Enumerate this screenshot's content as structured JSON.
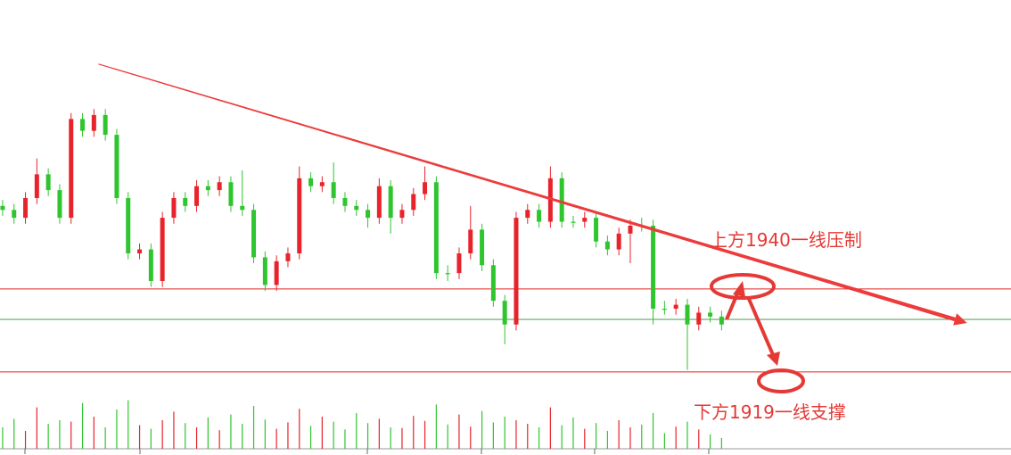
{
  "chart_data": {
    "type": "candlestick",
    "up_color": "#e8232b",
    "down_color": "#2ec52e",
    "ylim": [
      1918.3,
      2013.1
    ],
    "xlim": [
      -0.23,
      88.36
    ],
    "open": [
      1961,
      1960,
      1958,
      1963,
      1969,
      1965,
      1958,
      1983,
      1980,
      1984,
      1979,
      1963,
      1949,
      1950,
      1942,
      1958,
      1963,
      1961,
      1966,
      1965,
      1967,
      1961,
      1960,
      1948,
      1941,
      1947,
      1949,
      1968,
      1966,
      1967,
      1963,
      1961,
      1960,
      1958,
      1966,
      1958,
      1960,
      1964,
      1967,
      1944,
      1944,
      1949,
      1955,
      1946,
      1937,
      1931,
      1958,
      1960,
      1957,
      1968,
      1957,
      1957,
      1958,
      1952,
      1950,
      1954,
      1956,
      1956,
      1935,
      1935,
      1936,
      1931,
      1934,
      1933
    ],
    "high": [
      1962.5,
      1961.5,
      1964.5,
      1973,
      1970.5,
      1966.5,
      1984.5,
      1984.5,
      1985.5,
      1985.5,
      1980.5,
      1964.5,
      1951.5,
      1951.5,
      1959.5,
      1964.5,
      1964.5,
      1967.5,
      1967.5,
      1968.5,
      1968.5,
      1970,
      1961.5,
      1949.5,
      1948.5,
      1950.5,
      1971,
      1969.5,
      1968.5,
      1972,
      1964.5,
      1962.5,
      1961.5,
      1968,
      1967.5,
      1961.5,
      1965.5,
      1971,
      1968.5,
      1946,
      1950.5,
      1961,
      1956.5,
      1947.5,
      1938.5,
      1959.5,
      1961.5,
      1961.5,
      1971,
      1969.5,
      1958.5,
      1959.5,
      1959.5,
      1953.5,
      1955.5,
      1957.5,
      1958,
      1957.5,
      1937,
      1937.5,
      1937.5,
      1935.5,
      1935.5,
      1934.5
    ],
    "low": [
      1958.5,
      1956.5,
      1956.5,
      1961.5,
      1963.5,
      1956.5,
      1956.5,
      1978.5,
      1978.5,
      1977.5,
      1961.5,
      1947.5,
      1947.5,
      1940.5,
      1940.5,
      1956.5,
      1959.5,
      1959.5,
      1963.5,
      1963.5,
      1959.5,
      1958.5,
      1946.5,
      1939.5,
      1939.5,
      1945.5,
      1947.5,
      1964.5,
      1964.5,
      1961.5,
      1959.5,
      1958.5,
      1955.5,
      1956.5,
      1954,
      1956.5,
      1958.5,
      1962.5,
      1942.5,
      1942,
      1942.5,
      1947.5,
      1944.5,
      1935.5,
      1926,
      1929.5,
      1956.5,
      1955.5,
      1955.5,
      1955.5,
      1955.5,
      1955.5,
      1950.5,
      1948.5,
      1948.5,
      1946.5,
      1954.5,
      1931,
      1933.5,
      1933.5,
      1919.5,
      1929.5,
      1931.5,
      1929.5
    ],
    "close": [
      1960,
      1958,
      1963,
      1969,
      1965,
      1958,
      1983,
      1980,
      1984,
      1979,
      1963,
      1949,
      1950,
      1942,
      1958,
      1963,
      1961,
      1966,
      1965,
      1967,
      1961,
      1960,
      1948,
      1941,
      1947,
      1949,
      1968,
      1966,
      1967,
      1963,
      1961,
      1960,
      1958,
      1966,
      1958,
      1960,
      1964,
      1967,
      1944,
      1944,
      1949,
      1955,
      1946,
      1937,
      1931,
      1958,
      1960,
      1957,
      1968,
      1957,
      1957,
      1958,
      1952,
      1950,
      1954,
      1956,
      1956,
      1935,
      1935,
      1936,
      1931,
      1934,
      1933,
      1931
    ],
    "volume": [
      30,
      42,
      25,
      58,
      35,
      40,
      38,
      64,
      45,
      30,
      55,
      68,
      33,
      28,
      40,
      52,
      36,
      30,
      44,
      26,
      48,
      35,
      60,
      41,
      28,
      37,
      56,
      32,
      45,
      38,
      27,
      50,
      36,
      42,
      30,
      29,
      46,
      39,
      62,
      34,
      48,
      31,
      53,
      37,
      45,
      40,
      35,
      30,
      58,
      33,
      44,
      28,
      36,
      25,
      40,
      30,
      34,
      50,
      22,
      31,
      38,
      27,
      20,
      15
    ],
    "vol_ylim": [
      0,
      100
    ],
    "hlines": [
      {
        "value": 1940,
        "color": "#e02020"
      },
      {
        "value": 1932.3,
        "color": "#4a9a4a"
      },
      {
        "value": 1919,
        "color": "#e02020"
      }
    ],
    "trendline": {
      "x": [
        8.4,
        84.5
      ],
      "values": [
        1996.9,
        1931.4
      ],
      "color": "#ec3b3b"
    },
    "annotations": [
      "上方1940一线压制",
      "下方1919一线支撑"
    ]
  }
}
